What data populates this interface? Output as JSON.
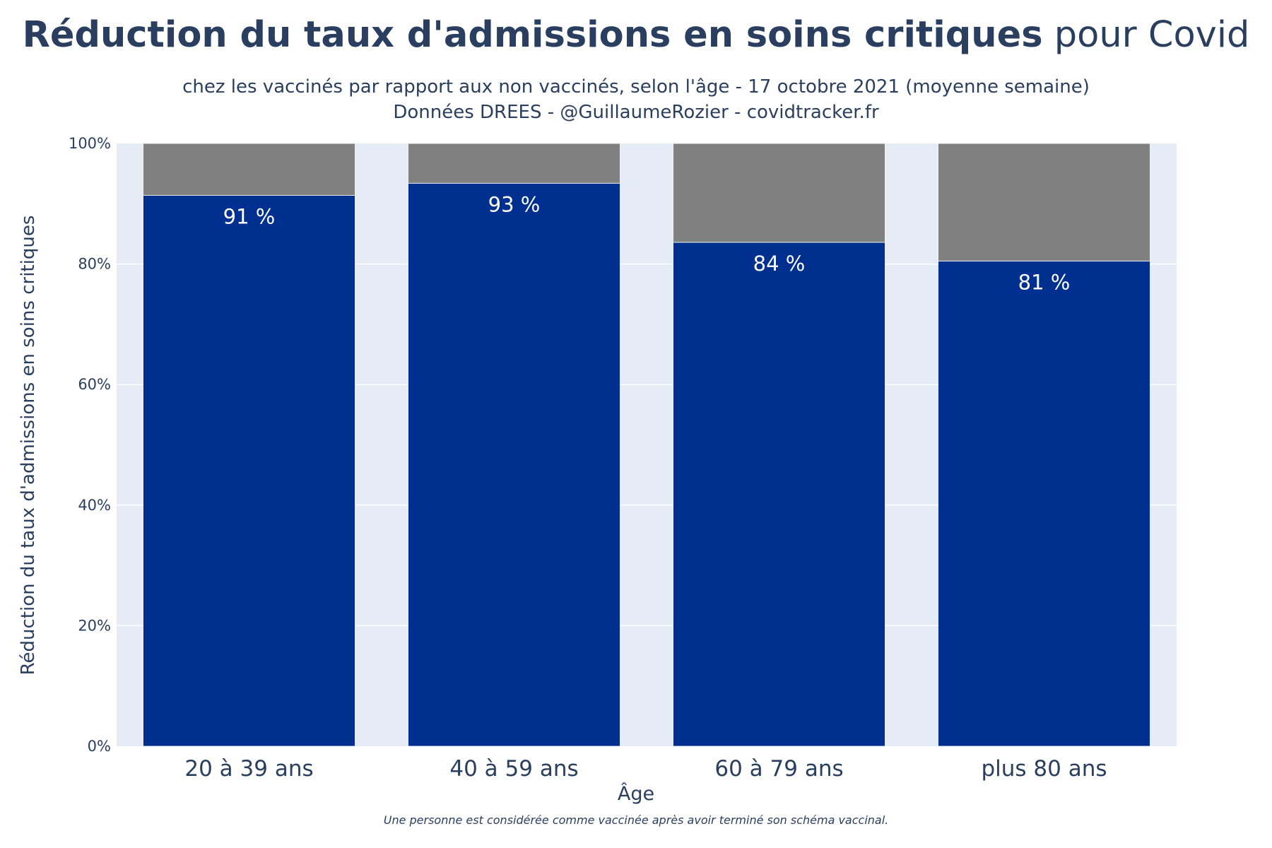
{
  "title": {
    "bold": "Réduction du taux d'admissions en soins critiques",
    "light": "pour Covid"
  },
  "subtitle": {
    "line1": "chez les vaccinés par rapport aux non vaccinés, selon l'âge - 17 octobre 2021 (moyenne semaine)",
    "line2": "Données DREES - @GuillaumeRozier - covidtracker.fr"
  },
  "footnote": "Une personne est considérée comme vaccinée après avoir terminé son schéma vaccinal.",
  "colors": {
    "plot_background": "#e5ecf6",
    "reduction_bar": "#00308f",
    "remainder_bar": "#808080",
    "text": "#2a3f5f"
  },
  "chart_data": {
    "type": "bar",
    "stacked": true,
    "categories": [
      "20 à 39 ans",
      "40 à 59 ans",
      "60 à 79 ans",
      "plus 80 ans"
    ],
    "series": [
      {
        "values": [
          91.4,
          93.4,
          83.6,
          80.5
        ],
        "color": "#00308f",
        "labels": [
          "91 %",
          "93 %",
          "84 %",
          "81 %"
        ]
      },
      {
        "values": [
          8.6,
          6.6,
          16.4,
          19.5
        ],
        "color": "#808080"
      }
    ],
    "xlabel": "Âge",
    "ylabel": "Réduction du taux d'admissions en soins critiques",
    "ylim": [
      0,
      100
    ],
    "yticks": [
      "0%",
      "20%",
      "40%",
      "60%",
      "80%",
      "100%"
    ],
    "ytick_values": [
      0,
      20,
      40,
      60,
      80,
      100
    ],
    "grid": true,
    "legend": "none"
  }
}
